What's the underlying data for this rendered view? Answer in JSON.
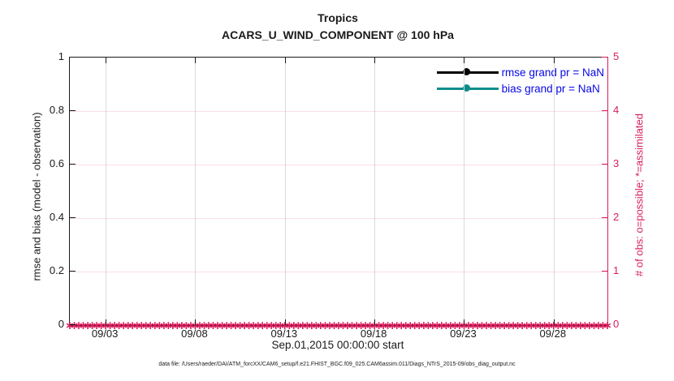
{
  "caption": "data file: /Users/raeder/DAI/ATM_forcXX/CAM6_setup/f.e21.FHIST_BGC.f09_025.CAM6assim.011/Diags_NTrS_2015-09/obs_diag_output.nc",
  "colors": {
    "obs_axis_pink": "#d81e5c",
    "bias_teal": "#0e8d8d",
    "rmse_black": "#000000",
    "legend_text_blue": "#0707e8",
    "vertical_grid_gray": "#dbdbdb",
    "horizontal_grid_light_pink": "rgba(216,30,92,0.14)"
  },
  "chart_data": {
    "type": "line",
    "title": "Tropics",
    "subtitle": "ACARS_U_WIND_COMPONENT @ 100 hPa",
    "xlabel": "Sep.01,2015 00:00:00 start",
    "ylabel_left": "rmse and bias (model - observation)",
    "ylabel_right": "# of obs: o=possible; *=assimilated",
    "x_range": [
      "Sep 01 2015 00:00",
      "Oct 01 2015 00:00"
    ],
    "x_ticks": [
      {
        "label": "09/03",
        "pct": 6.67
      },
      {
        "label": "09/08",
        "pct": 23.33
      },
      {
        "label": "09/13",
        "pct": 40.0
      },
      {
        "label": "09/18",
        "pct": 56.67
      },
      {
        "label": "09/23",
        "pct": 73.33
      },
      {
        "label": "09/28",
        "pct": 90.0
      }
    ],
    "y_left_ticks": [
      "0",
      "0.2",
      "0.4",
      "0.6",
      "0.8",
      "1"
    ],
    "y_left_range": [
      0,
      1
    ],
    "y_right_ticks": [
      "0",
      "1",
      "2",
      "3",
      "4",
      "5"
    ],
    "y_right_range": [
      0,
      5
    ],
    "grid": true,
    "legend": {
      "position": "top-right-inside",
      "entries": [
        {
          "label": "rmse grand pr = NaN",
          "color": "#000000",
          "marker": "filled-circle"
        },
        {
          "label": "bias grand pr = NaN",
          "color": "#0e8d8d",
          "marker": "filled-circle"
        }
      ]
    },
    "series": [
      {
        "name": "rmse",
        "axis": "left",
        "grand_pr": "NaN",
        "values": []
      },
      {
        "name": "bias",
        "axis": "left",
        "grand_pr": "NaN",
        "values": []
      },
      {
        "name": "obs_assimilated",
        "axis": "right",
        "marker": "*",
        "marker_glyph": "∗",
        "color": "#d81e5c",
        "constant_value": 0,
        "n_markers": 121
      }
    ]
  }
}
